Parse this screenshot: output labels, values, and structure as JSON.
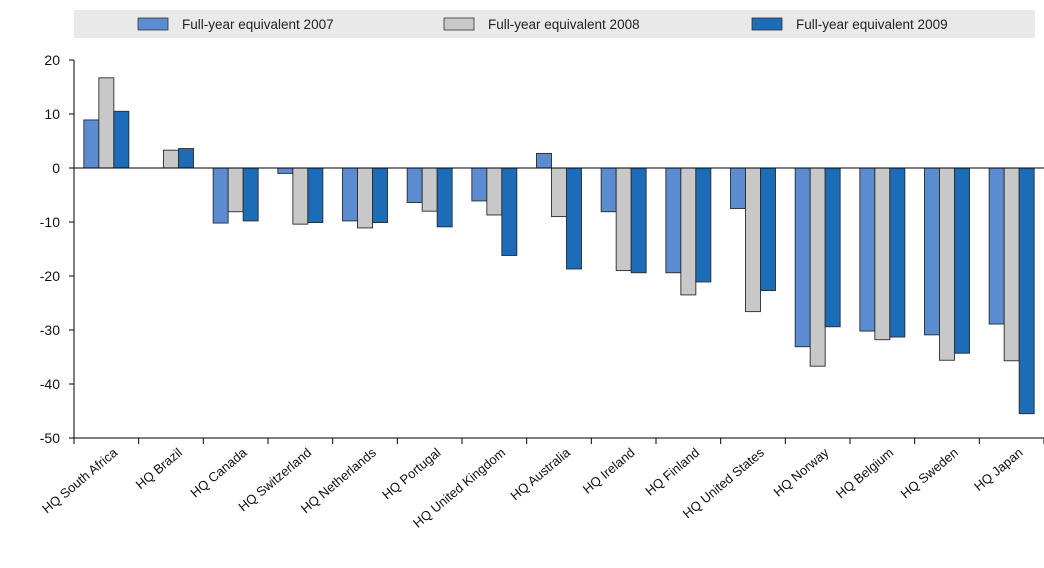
{
  "colors": {
    "series_2007": "#5b8bd0",
    "series_2008": "#c8c8c8",
    "series_2009": "#1c6cb8",
    "legend_bg": "#e9e9e9",
    "axis": "#000000"
  },
  "chart_data": {
    "type": "bar",
    "title": "",
    "xlabel": "",
    "ylabel": "",
    "ylim": [
      -50,
      20
    ],
    "yticks": [
      20,
      10,
      0,
      -10,
      -20,
      -30,
      -40,
      -50
    ],
    "grid": false,
    "legend_position": "top",
    "categories": [
      "HQ South Africa",
      "HQ Brazil",
      "HQ Canada",
      "HQ Switzerland",
      "HQ Netherlands",
      "HQ Portugal",
      "HQ United Kingdom",
      "HQ Australia",
      "HQ Ireland",
      "HQ Finland",
      "HQ United States",
      "HQ Norway",
      "HQ Belgium",
      "HQ Sweden",
      "HQ Japan"
    ],
    "series": [
      {
        "name": "Full-year equivalent 2007",
        "color": "#5b8bd0",
        "values": [
          8.9,
          null,
          -10.2,
          -1.0,
          -9.8,
          -6.4,
          -6.1,
          2.7,
          -8.1,
          -19.4,
          -7.5,
          -33.1,
          -30.2,
          -30.9,
          -28.9
        ]
      },
      {
        "name": "Full-year equivalent 2008",
        "color": "#c8c8c8",
        "values": [
          16.7,
          3.3,
          -8.1,
          -10.4,
          -11.1,
          -8.0,
          -8.7,
          -9.0,
          -19.0,
          -23.5,
          -26.6,
          -36.7,
          -31.8,
          -35.6,
          -35.7
        ]
      },
      {
        "name": "Full-year equivalent 2009",
        "color": "#1c6cb8",
        "values": [
          10.5,
          3.6,
          -9.8,
          -10.1,
          -10.1,
          -10.9,
          -16.2,
          -18.7,
          -19.4,
          -21.1,
          -22.7,
          -29.4,
          -31.3,
          -34.3,
          -45.5
        ]
      }
    ]
  }
}
